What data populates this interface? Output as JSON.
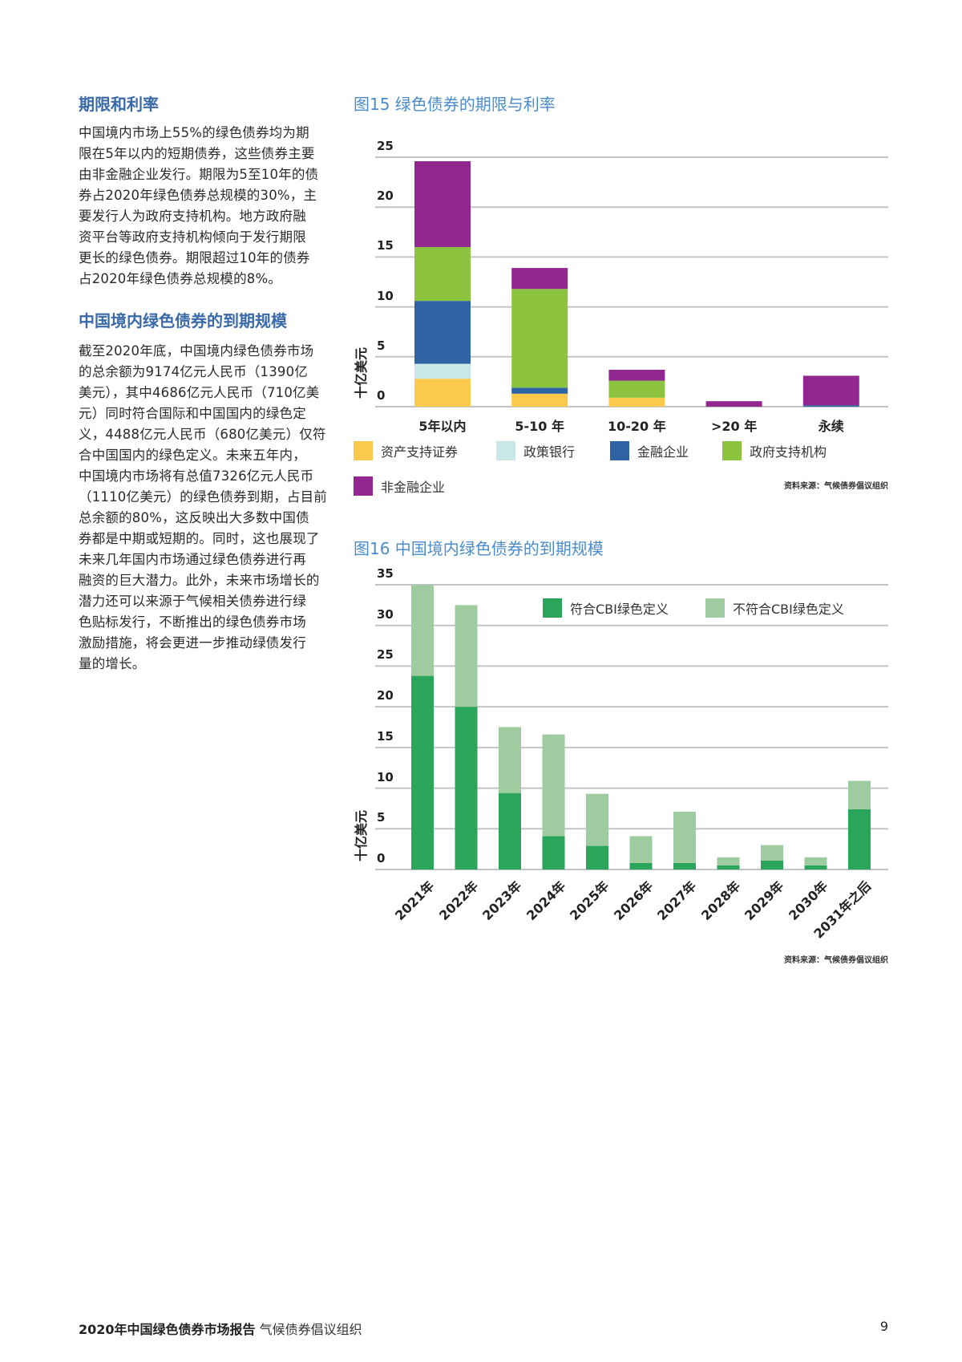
{
  "left": {
    "heading1": "期限和利率",
    "para1": [
      "中国境内市场上55%的绿色债券均为期",
      "限在5年以内的短期债券，这些债券主要",
      "由非金融企业发行。期限为5至10年的债",
      "券占2020年绿色债券总规模的30%，主",
      "要发行人为政府支持机构。地方政府融",
      "资平台等政府支持机构倾向于发行期限",
      "更长的绿色债券。期限超过10年的债券",
      "占2020年绿色债券总规模的8%。"
    ],
    "heading2": "中国境内绿色债券的到期规模",
    "para2": [
      "截至2020年底，中国境内绿色债券市场",
      "的总余额为9174亿元人民币（1390亿",
      "美元），其中4686亿元人民币（710亿美",
      "元）同时符合国际和中国国内的绿色定",
      "义，4488亿元人民币（680亿美元）仅符",
      "合中国国内的绿色定义。未来五年内，",
      "中国境内市场将有总值7326亿元人民币",
      "（1110亿美元）的绿色债券到期，占目前",
      "总余额的80%，这反映出大多数中国债",
      "券都是中期或短期的。同时，这也展现了",
      "未来几年国内市场通过绿色债券进行再",
      "融资的巨大潜力。此外，未来市场增长的",
      "潜力还可以来源于气候相关债券进行绿",
      "色贴标发行，不断推出的绿色债券市场",
      "激励措施，将会更进一步推动绿债发行",
      "量的增长。"
    ]
  },
  "chart_data": [
    {
      "type": "bar",
      "stacked": true,
      "title": "图15 绿色债券的期限与利率",
      "ylabel": "十亿美元",
      "ylim": [
        0,
        25
      ],
      "yticks": [
        "0",
        "5",
        "10",
        "15",
        "20",
        "25"
      ],
      "grid": true,
      "legend_position": "bottom",
      "categories": [
        "5年以内",
        "5-10 年",
        "10-20 年",
        ">20 年",
        "永续"
      ],
      "series": [
        {
          "name": "资产支持证券",
          "color": "#fbc94c",
          "values": [
            2.8,
            1.3,
            0.9,
            0,
            0
          ]
        },
        {
          "name": "政策银行",
          "color": "#c8e7e6",
          "values": [
            1.5,
            0,
            0,
            0,
            0
          ]
        },
        {
          "name": "金融企业",
          "color": "#2e64a3",
          "values": [
            6.3,
            0.6,
            0,
            0,
            0.15
          ]
        },
        {
          "name": "政府支持机构",
          "color": "#8cc43f",
          "values": [
            5.4,
            9.9,
            1.7,
            0,
            0
          ]
        },
        {
          "name": "非金融企业",
          "color": "#92278f",
          "values": [
            8.6,
            2.1,
            1.1,
            0.55,
            2.95
          ]
        }
      ],
      "source": "资料来源：气候债券倡议组织"
    },
    {
      "type": "bar",
      "stacked": true,
      "title": "图16 中国境内绿色债券的到期规模",
      "ylabel": "十亿美元",
      "ylim": [
        0,
        35
      ],
      "yticks": [
        "0",
        "5",
        "10",
        "15",
        "20",
        "25",
        "30",
        "35"
      ],
      "grid": true,
      "legend_position": "top-right",
      "categories": [
        "2021年",
        "2022年",
        "2023年",
        "2024年",
        "2025年",
        "2026年",
        "2027年",
        "2028年",
        "2029年",
        "2030年",
        "2031年之后"
      ],
      "series": [
        {
          "name": "符合CBI绿色定义",
          "color": "#2aa55a",
          "values": [
            23.8,
            20.0,
            9.4,
            4.1,
            2.9,
            0.8,
            0.8,
            0.5,
            1.1,
            0.5,
            7.4
          ]
        },
        {
          "name": "不符合CBI绿色定义",
          "color": "#9fcba1",
          "values": [
            11.2,
            12.5,
            8.1,
            12.5,
            6.4,
            3.3,
            6.3,
            1.0,
            1.9,
            1.0,
            3.5
          ]
        }
      ],
      "source": "资料来源：气候债券倡议组织"
    }
  ],
  "footer": {
    "report_title": "2020年中国绿色债券市场报告",
    "org": "气候债券倡议组织",
    "page_number": "9"
  }
}
